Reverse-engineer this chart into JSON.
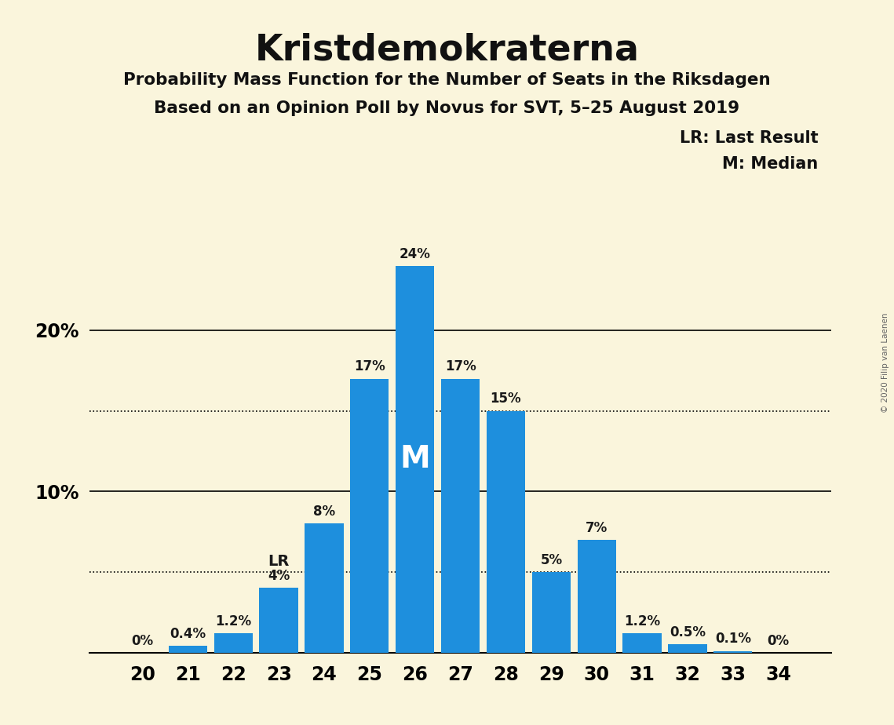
{
  "title": "Kristdemokraterna",
  "subtitle1": "Probability Mass Function for the Number of Seats in the Riksdagen",
  "subtitle2": "Based on an Opinion Poll by Novus for SVT, 5–25 August 2019",
  "copyright": "© 2020 Filip van Laenen",
  "legend_lr": "LR: Last Result",
  "legend_m": "M: Median",
  "bar_color": "#1e8fdd",
  "background_color": "#faf5dc",
  "categories": [
    20,
    21,
    22,
    23,
    24,
    25,
    26,
    27,
    28,
    29,
    30,
    31,
    32,
    33,
    34
  ],
  "values": [
    0.0,
    0.4,
    1.2,
    4.0,
    8.0,
    17.0,
    24.0,
    17.0,
    15.0,
    5.0,
    7.0,
    1.2,
    0.5,
    0.1,
    0.0
  ],
  "labels": [
    "0%",
    "0.4%",
    "1.2%",
    "4%",
    "8%",
    "17%",
    "24%",
    "17%",
    "15%",
    "5%",
    "7%",
    "1.2%",
    "0.5%",
    "0.1%",
    "0%"
  ],
  "median_seat": 26,
  "lr_seat": 23,
  "dotted_lines": [
    5.0,
    15.0
  ],
  "solid_lines": [
    10.0,
    20.0
  ],
  "ylim": [
    0,
    27
  ],
  "yticks": [
    10,
    20
  ],
  "ytick_labels": [
    "10%",
    "20%"
  ]
}
